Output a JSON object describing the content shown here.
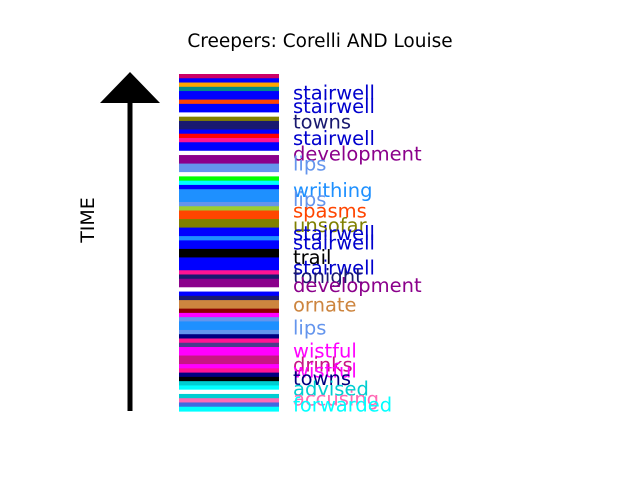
{
  "chart_data": {
    "type": "bar",
    "title": "Creepers: Corelli AND Louise",
    "ylabel": "TIME",
    "xlabel": "",
    "arrow_direction": "up",
    "stripes": [
      "#cc0066",
      "#0000ff",
      "#ffa500",
      "#008b8b",
      "#0000ff",
      "#0000ff",
      "#ff4500",
      "#0000ff",
      "#0000ff",
      "#ffffff",
      "#808000",
      "#191970",
      "#191970",
      "#0000ff",
      "#ff0000",
      "#ff1493",
      "#0000ff",
      "#0000ff",
      "#ffffff",
      "#8b008b",
      "#8b008b",
      "#6495ed",
      "#6495ed",
      "#ffffff",
      "#00ff00",
      "#00ffff",
      "#0000ff",
      "#1e90ff",
      "#1e90ff",
      "#1e90ff",
      "#6495ed",
      "#9acd32",
      "#ff4500",
      "#ff4500",
      "#808000",
      "#808000",
      "#0000ff",
      "#0000ff",
      "#1e90ff",
      "#0000ff",
      "#0000ff",
      "#000000",
      "#000000",
      "#0000ff",
      "#0000ff",
      "#0000ff",
      "#ff1493",
      "#191970",
      "#8b008b",
      "#8b008b",
      "#ffffff",
      "#0000ff",
      "#191970",
      "#cd853f",
      "#cd853f",
      "#8b0000",
      "#ff00ff",
      "#6495ed",
      "#1e90ff",
      "#1e90ff",
      "#6495ed",
      "#000080",
      "#ff1493",
      "#483d8b",
      "#ff00ff",
      "#ff00ff",
      "#c71585",
      "#c71585",
      "#ff00ff",
      "#ff1493",
      "#000080",
      "#000000",
      "#00ced1",
      "#00ffff",
      "#ffffff",
      "#00ced1",
      "#ff69b4",
      "#4169e1",
      "#00ffff"
    ],
    "labels": [
      {
        "text": "stairwell",
        "position": 0.944,
        "color": "#0000cd"
      },
      {
        "text": "stairwell",
        "position": 0.904,
        "color": "#0000cd"
      },
      {
        "text": "towns",
        "position": 0.858,
        "color": "#191970"
      },
      {
        "text": "stairwell",
        "position": 0.808,
        "color": "#0000cd"
      },
      {
        "text": "development",
        "position": 0.763,
        "color": "#8b008b"
      },
      {
        "text": "lips",
        "position": 0.733,
        "color": "#6495ed"
      },
      {
        "text": "writhing",
        "position": 0.654,
        "color": "#1e90ff"
      },
      {
        "text": "lips",
        "position": 0.627,
        "color": "#6495ed"
      },
      {
        "text": "spasms",
        "position": 0.593,
        "color": "#ff4500"
      },
      {
        "text": "unsofar",
        "position": 0.55,
        "color": "#808000"
      },
      {
        "text": "stairwell",
        "position": 0.526,
        "color": "#0000cd"
      },
      {
        "text": "stairwell",
        "position": 0.498,
        "color": "#0000cd"
      },
      {
        "text": "trail",
        "position": 0.456,
        "color": "#000000"
      },
      {
        "text": "stairwell",
        "position": 0.425,
        "color": "#0000cd"
      },
      {
        "text": "tonight",
        "position": 0.399,
        "color": "#191970"
      },
      {
        "text": "development",
        "position": 0.373,
        "color": "#8b008b"
      },
      {
        "text": "ornate",
        "position": 0.315,
        "color": "#cd853f"
      },
      {
        "text": "lips",
        "position": 0.246,
        "color": "#6495ed"
      },
      {
        "text": "wistful",
        "position": 0.178,
        "color": "#ff00ff"
      },
      {
        "text": "drinks",
        "position": 0.137,
        "color": "#c71585"
      },
      {
        "text": "wistful",
        "position": 0.119,
        "color": "#ff00ff"
      },
      {
        "text": "towns",
        "position": 0.096,
        "color": "#000080"
      },
      {
        "text": "advised",
        "position": 0.065,
        "color": "#00ced1"
      },
      {
        "text": "accusing",
        "position": 0.036,
        "color": "#ff69b4"
      },
      {
        "text": "forwarded",
        "position": 0.018,
        "color": "#00ffff"
      }
    ]
  }
}
